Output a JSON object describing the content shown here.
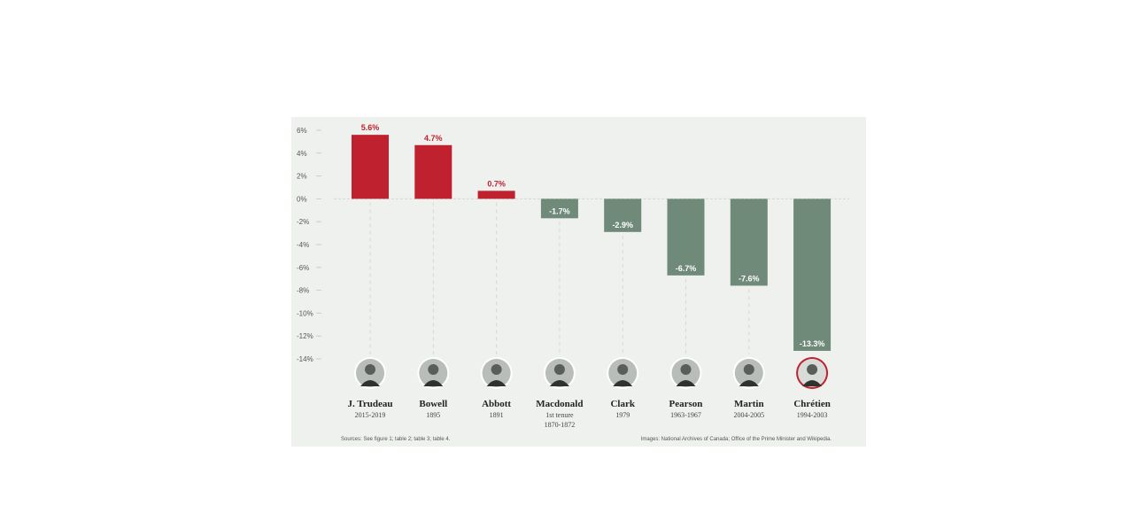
{
  "chart_data": {
    "type": "bar",
    "categories": [
      "J. Trudeau",
      "Bowell",
      "Abbott",
      "Macdonald",
      "Clark",
      "Pearson",
      "Martin",
      "Chrétien"
    ],
    "category_sublabels": [
      [
        "2015-2019"
      ],
      [
        "1895"
      ],
      [
        "1891"
      ],
      [
        "1st tenure",
        "1870-1872"
      ],
      [
        "1979"
      ],
      [
        "1963-1967"
      ],
      [
        "2004-2005"
      ],
      [
        "1994-2003"
      ]
    ],
    "values": [
      5.6,
      4.7,
      0.7,
      -1.7,
      -2.9,
      -6.7,
      -7.6,
      -13.3
    ],
    "value_labels": [
      "5.6%",
      "4.7%",
      "0.7%",
      "-1.7%",
      "-2.9%",
      "-6.7%",
      "-7.6%",
      "-13.3%"
    ],
    "ylim": [
      -14,
      6
    ],
    "yticks": [
      6,
      4,
      2,
      0,
      -2,
      -4,
      -6,
      -8,
      -10,
      -12,
      -14
    ],
    "ytick_labels": [
      "6%",
      "4%",
      "2%",
      "0%",
      "-2%",
      "-4%",
      "-6%",
      "-8%",
      "-10%",
      "-12%",
      "-14%"
    ],
    "colors": {
      "positive": "#c0212f",
      "negative": "#6f8a79",
      "background": "#eff1ef",
      "highlight_avatar": "#c0212f"
    },
    "avatar_icons": [
      "portrait-icon",
      "portrait-icon",
      "portrait-icon",
      "portrait-icon",
      "portrait-icon",
      "portrait-icon",
      "portrait-icon",
      "portrait-icon"
    ]
  },
  "footer": {
    "sources": "Sources: See figure 1; table 2; table 3; table 4.",
    "images": "Images: National Archives of Canada; Office of the Prime Minister and Wikipedia."
  }
}
